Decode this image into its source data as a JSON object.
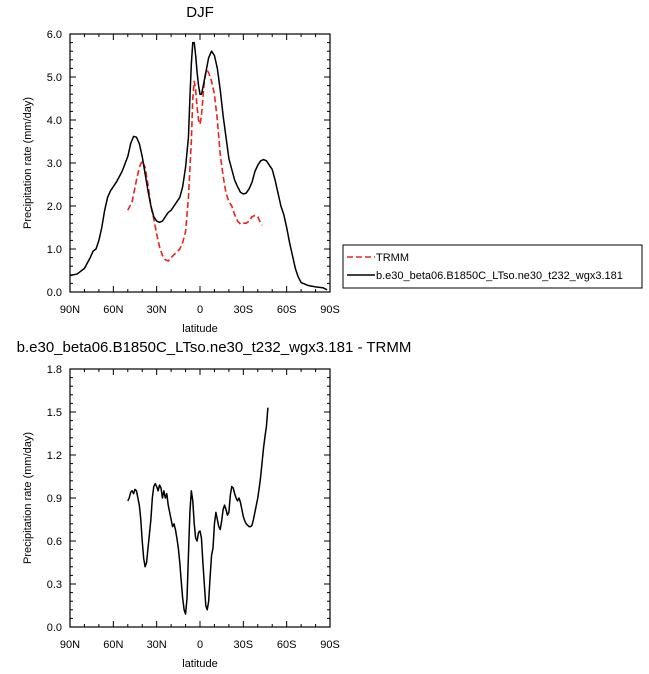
{
  "chart_data": [
    {
      "type": "line",
      "title": "DJF",
      "xlabel": "latitude",
      "ylabel": "Precipitation rate (mm/day)",
      "xlim": [
        90,
        -90
      ],
      "ylim": [
        0,
        6
      ],
      "x_ticks": [
        "90N",
        "60N",
        "30N",
        "0",
        "30S",
        "60S",
        "90S"
      ],
      "y_ticks": [
        "0.0",
        "1.0",
        "2.0",
        "3.0",
        "4.0",
        "5.0",
        "6.0"
      ],
      "legend": {
        "placement": "right",
        "entries": [
          "TRMM",
          "b.e30_beta06.B1850C_LTso.ne30_t232_wgx3.181"
        ]
      },
      "series": [
        {
          "name": "TRMM",
          "style": "dashed",
          "color": "#e8231f",
          "points": [
            [
              50,
              1.9
            ],
            [
              47,
              2.1
            ],
            [
              44,
              2.6
            ],
            [
              42,
              2.9
            ],
            [
              40,
              3.05
            ],
            [
              38,
              2.9
            ],
            [
              36,
              2.5
            ],
            [
              34,
              2.0
            ],
            [
              32,
              1.7
            ],
            [
              30,
              1.35
            ],
            [
              28,
              1.05
            ],
            [
              26,
              0.85
            ],
            [
              24,
              0.75
            ],
            [
              22,
              0.72
            ],
            [
              20,
              0.8
            ],
            [
              17,
              0.9
            ],
            [
              14,
              1.0
            ],
            [
              12,
              1.15
            ],
            [
              10,
              1.4
            ],
            [
              8,
              2.2
            ],
            [
              6,
              3.5
            ],
            [
              5,
              4.5
            ],
            [
              4,
              4.9
            ],
            [
              3,
              4.7
            ],
            [
              2,
              4.3
            ],
            [
              1,
              4.0
            ],
            [
              0,
              3.9
            ],
            [
              -1,
              4.1
            ],
            [
              -2,
              4.5
            ],
            [
              -3,
              4.9
            ],
            [
              -4,
              5.1
            ],
            [
              -5,
              5.15
            ],
            [
              -6,
              5.1
            ],
            [
              -8,
              4.9
            ],
            [
              -10,
              4.6
            ],
            [
              -12,
              4.0
            ],
            [
              -14,
              3.2
            ],
            [
              -16,
              2.7
            ],
            [
              -18,
              2.3
            ],
            [
              -20,
              2.1
            ],
            [
              -22,
              2.0
            ],
            [
              -24,
              1.8
            ],
            [
              -26,
              1.65
            ],
            [
              -28,
              1.58
            ],
            [
              -30,
              1.6
            ],
            [
              -32,
              1.6
            ],
            [
              -34,
              1.65
            ],
            [
              -36,
              1.75
            ],
            [
              -38,
              1.78
            ],
            [
              -40,
              1.75
            ],
            [
              -42,
              1.6
            ],
            [
              -43,
              1.55
            ]
          ]
        },
        {
          "name": "b.e30_beta06.B1850C_LTso.ne30_t232_wgx3.181",
          "style": "solid",
          "color": "#000000",
          "points": [
            [
              90,
              0.38
            ],
            [
              85,
              0.42
            ],
            [
              80,
              0.55
            ],
            [
              76,
              0.8
            ],
            [
              74,
              0.95
            ],
            [
              72,
              1.0
            ],
            [
              70,
              1.2
            ],
            [
              68,
              1.5
            ],
            [
              66,
              1.9
            ],
            [
              64,
              2.2
            ],
            [
              62,
              2.35
            ],
            [
              58,
              2.55
            ],
            [
              54,
              2.8
            ],
            [
              50,
              3.15
            ],
            [
              48,
              3.45
            ],
            [
              46,
              3.62
            ],
            [
              44,
              3.6
            ],
            [
              42,
              3.45
            ],
            [
              40,
              3.15
            ],
            [
              38,
              2.75
            ],
            [
              36,
              2.35
            ],
            [
              34,
              2.0
            ],
            [
              32,
              1.75
            ],
            [
              30,
              1.65
            ],
            [
              28,
              1.62
            ],
            [
              26,
              1.65
            ],
            [
              24,
              1.75
            ],
            [
              22,
              1.85
            ],
            [
              20,
              1.9
            ],
            [
              18,
              2.0
            ],
            [
              16,
              2.1
            ],
            [
              14,
              2.2
            ],
            [
              12,
              2.45
            ],
            [
              10,
              2.9
            ],
            [
              8,
              3.6
            ],
            [
              7,
              4.5
            ],
            [
              6,
              5.3
            ],
            [
              5,
              5.8
            ],
            [
              4,
              5.8
            ],
            [
              3,
              5.5
            ],
            [
              2,
              5.1
            ],
            [
              1,
              4.8
            ],
            [
              0,
              4.6
            ],
            [
              -1,
              4.6
            ],
            [
              -2,
              4.75
            ],
            [
              -4,
              5.1
            ],
            [
              -6,
              5.45
            ],
            [
              -8,
              5.6
            ],
            [
              -10,
              5.5
            ],
            [
              -12,
              5.2
            ],
            [
              -14,
              4.7
            ],
            [
              -16,
              4.1
            ],
            [
              -18,
              3.6
            ],
            [
              -20,
              3.1
            ],
            [
              -22,
              2.85
            ],
            [
              -24,
              2.6
            ],
            [
              -26,
              2.45
            ],
            [
              -28,
              2.32
            ],
            [
              -30,
              2.28
            ],
            [
              -32,
              2.3
            ],
            [
              -34,
              2.4
            ],
            [
              -36,
              2.55
            ],
            [
              -38,
              2.8
            ],
            [
              -40,
              2.95
            ],
            [
              -42,
              3.05
            ],
            [
              -44,
              3.08
            ],
            [
              -46,
              3.05
            ],
            [
              -48,
              2.95
            ],
            [
              -50,
              2.85
            ],
            [
              -52,
              2.6
            ],
            [
              -54,
              2.3
            ],
            [
              -56,
              2.0
            ],
            [
              -58,
              1.8
            ],
            [
              -60,
              1.5
            ],
            [
              -62,
              1.15
            ],
            [
              -64,
              0.85
            ],
            [
              -66,
              0.55
            ],
            [
              -68,
              0.35
            ],
            [
              -70,
              0.22
            ],
            [
              -75,
              0.15
            ],
            [
              -80,
              0.12
            ],
            [
              -85,
              0.1
            ],
            [
              -88,
              0.05
            ]
          ]
        }
      ]
    },
    {
      "type": "line",
      "title": "b.e30_beta06.B1850C_LTso.ne30_t232_wgx3.181 - TRMM",
      "xlabel": "latitude",
      "ylabel": "Precipitation rate (mm/day)",
      "xlim": [
        90,
        -90
      ],
      "ylim": [
        0,
        1.8
      ],
      "x_ticks": [
        "90N",
        "60N",
        "30N",
        "0",
        "30S",
        "60S",
        "90S"
      ],
      "y_ticks": [
        "0.0",
        "0.3",
        "0.6",
        "0.9",
        "1.2",
        "1.5",
        "1.8"
      ],
      "series": [
        {
          "style": "solid",
          "color": "#000000",
          "points": [
            [
              50,
              0.88
            ],
            [
              49,
              0.9
            ],
            [
              48,
              0.94
            ],
            [
              47,
              0.95
            ],
            [
              46,
              0.93
            ],
            [
              45,
              0.96
            ],
            [
              44,
              0.95
            ],
            [
              43,
              0.9
            ],
            [
              42,
              0.85
            ],
            [
              41,
              0.75
            ],
            [
              40,
              0.6
            ],
            [
              39,
              0.48
            ],
            [
              38,
              0.42
            ],
            [
              37,
              0.45
            ],
            [
              36,
              0.55
            ],
            [
              35,
              0.65
            ],
            [
              34,
              0.75
            ],
            [
              33,
              0.9
            ],
            [
              32,
              0.98
            ],
            [
              31,
              1.0
            ],
            [
              30,
              0.98
            ],
            [
              29,
              0.95
            ],
            [
              28,
              0.99
            ],
            [
              27,
              0.97
            ],
            [
              26,
              0.9
            ],
            [
              25,
              0.95
            ],
            [
              24,
              0.9
            ],
            [
              23,
              0.93
            ],
            [
              22,
              0.85
            ],
            [
              21,
              0.8
            ],
            [
              20,
              0.75
            ],
            [
              19,
              0.7
            ],
            [
              18,
              0.72
            ],
            [
              17,
              0.68
            ],
            [
              16,
              0.62
            ],
            [
              15,
              0.55
            ],
            [
              14,
              0.45
            ],
            [
              13,
              0.32
            ],
            [
              12,
              0.2
            ],
            [
              11,
              0.12
            ],
            [
              10,
              0.09
            ],
            [
              9,
              0.2
            ],
            [
              8,
              0.5
            ],
            [
              7,
              0.8
            ],
            [
              6,
              0.95
            ],
            [
              5,
              0.88
            ],
            [
              4,
              0.72
            ],
            [
              3,
              0.62
            ],
            [
              2,
              0.6
            ],
            [
              1,
              0.66
            ],
            [
              0,
              0.67
            ],
            [
              -1,
              0.62
            ],
            [
              -2,
              0.45
            ],
            [
              -3,
              0.3
            ],
            [
              -4,
              0.15
            ],
            [
              -5,
              0.12
            ],
            [
              -6,
              0.18
            ],
            [
              -7,
              0.35
            ],
            [
              -8,
              0.5
            ],
            [
              -9,
              0.55
            ],
            [
              -10,
              0.72
            ],
            [
              -11,
              0.8
            ],
            [
              -12,
              0.75
            ],
            [
              -13,
              0.7
            ],
            [
              -14,
              0.68
            ],
            [
              -15,
              0.74
            ],
            [
              -16,
              0.82
            ],
            [
              -17,
              0.85
            ],
            [
              -18,
              0.82
            ],
            [
              -19,
              0.78
            ],
            [
              -20,
              0.8
            ],
            [
              -21,
              0.92
            ],
            [
              -22,
              0.98
            ],
            [
              -23,
              0.97
            ],
            [
              -24,
              0.93
            ],
            [
              -25,
              0.9
            ],
            [
              -26,
              0.88
            ],
            [
              -27,
              0.9
            ],
            [
              -28,
              0.87
            ],
            [
              -29,
              0.82
            ],
            [
              -30,
              0.77
            ],
            [
              -31,
              0.74
            ],
            [
              -32,
              0.72
            ],
            [
              -33,
              0.71
            ],
            [
              -34,
              0.7
            ],
            [
              -35,
              0.7
            ],
            [
              -36,
              0.71
            ],
            [
              -37,
              0.75
            ],
            [
              -38,
              0.8
            ],
            [
              -39,
              0.85
            ],
            [
              -40,
              0.9
            ],
            [
              -41,
              0.97
            ],
            [
              -42,
              1.05
            ],
            [
              -43,
              1.15
            ],
            [
              -44,
              1.25
            ],
            [
              -45,
              1.33
            ],
            [
              -46,
              1.4
            ],
            [
              -47,
              1.53
            ]
          ]
        }
      ]
    }
  ]
}
